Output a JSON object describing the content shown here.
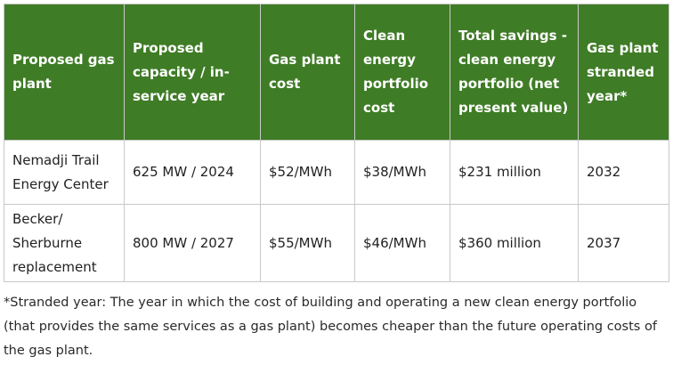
{
  "table": {
    "headers": [
      "Proposed gas plant",
      "Proposed capacity / in-service year",
      "Gas plant cost",
      "Clean energy portfolio cost",
      "Total savings - clean energy portfolio (net present value)",
      "Gas plant stranded year*"
    ],
    "rows": [
      {
        "plant": "Nemadji Trail Energy Center",
        "capacity": "625 MW / 2024",
        "gas_cost": "$52/MWh",
        "clean_cost": "$38/MWh",
        "savings": "$231 million",
        "stranded_year": "2032"
      },
      {
        "plant": "Becker/ Sherburne replacement",
        "capacity": "800 MW / 2027",
        "gas_cost": "$55/MWh",
        "clean_cost": "$46/MWh",
        "savings": "$360 million",
        "stranded_year": "2037"
      }
    ]
  },
  "footnote": "*Stranded year: The year in which the cost of building and operating a new clean energy portfolio (that provides the same services as a gas plant) becomes cheaper than the future operating costs of the gas plant.",
  "colors": {
    "header_background": "#3f7c26",
    "header_text": "#ffffff",
    "border": "#c9c9c9",
    "body_text": "#222222"
  }
}
